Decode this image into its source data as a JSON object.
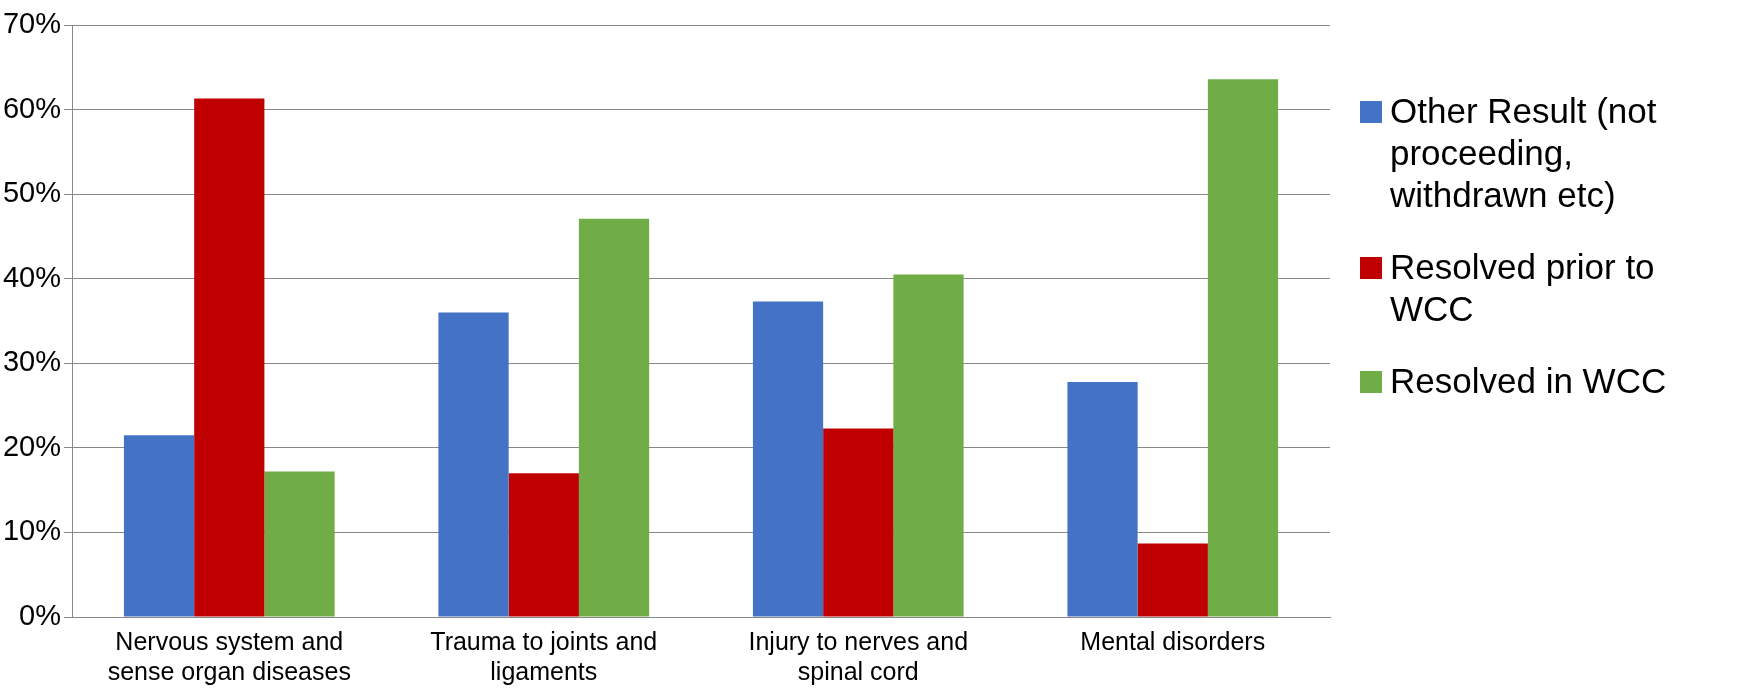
{
  "chart_data": {
    "type": "bar",
    "categories": [
      "Nervous system and sense organ diseases",
      "Trauma to joints and ligaments",
      "Injury to nerves and spinal cord",
      "Mental disorders"
    ],
    "series": [
      {
        "name": "Other Result (not proceeding, withdrawn etc)",
        "color": "#4472c4",
        "values": [
          21.5,
          36,
          37.3,
          27.8
        ]
      },
      {
        "name": "Resolved prior to WCC",
        "color": "#c00000",
        "values": [
          61.3,
          17,
          22.3,
          8.7
        ]
      },
      {
        "name": "Resolved in WCC",
        "color": "#70ad47",
        "values": [
          17.2,
          47.1,
          40.5,
          63.6
        ]
      }
    ],
    "ylim": [
      0,
      70
    ],
    "yticks": [
      {
        "value": 0,
        "label": "0%"
      },
      {
        "value": 10,
        "label": "10%"
      },
      {
        "value": 20,
        "label": "20%"
      },
      {
        "value": 30,
        "label": "30%"
      },
      {
        "value": 40,
        "label": "40%"
      },
      {
        "value": 50,
        "label": "50%"
      },
      {
        "value": 60,
        "label": "60%"
      },
      {
        "value": 70,
        "label": "70%"
      }
    ],
    "grid": "y",
    "legend": "right"
  }
}
